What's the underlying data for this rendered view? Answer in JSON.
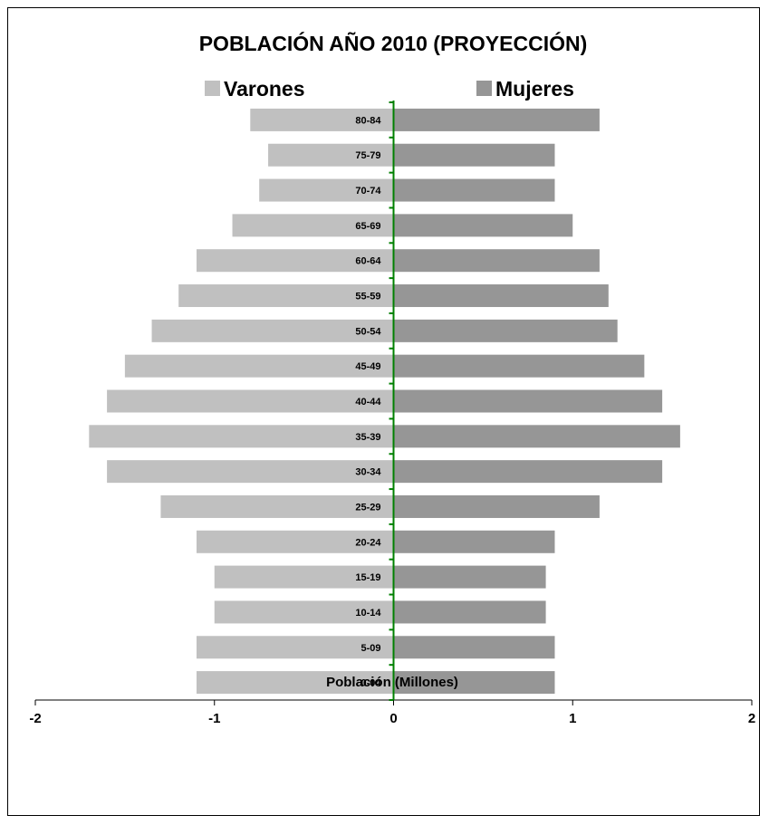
{
  "chart_data": {
    "type": "bar",
    "orientation": "horizontal",
    "layout": "population-pyramid",
    "title": "POBLACIÓN AÑO 2010 (PROYECCIÓN)",
    "xlabel": "Población (Millones)",
    "ylabel": "",
    "xlim": [
      -2,
      2
    ],
    "xticks": [
      -2,
      -1,
      0,
      1,
      2
    ],
    "xtick_labels": [
      "-2",
      "-1",
      "0",
      "1",
      "2"
    ],
    "legend_position": "top",
    "categories": [
      "0-04",
      "5-09",
      "10-14",
      "15-19",
      "20-24",
      "25-29",
      "30-34",
      "35-39",
      "40-44",
      "45-49",
      "50-54",
      "55-59",
      "60-64",
      "65-69",
      "70-74",
      "75-79",
      "80-84"
    ],
    "series": [
      {
        "name": "Varones",
        "color": "#c0c0c0",
        "values": [
          -1.1,
          -1.1,
          -1.0,
          -1.0,
          -1.1,
          -1.3,
          -1.6,
          -1.7,
          -1.6,
          -1.5,
          -1.35,
          -1.2,
          -1.1,
          -0.9,
          -0.75,
          -0.7,
          -0.8
        ]
      },
      {
        "name": "Mujeres",
        "color": "#969696",
        "values": [
          0.9,
          0.9,
          0.85,
          0.85,
          0.9,
          1.15,
          1.5,
          1.6,
          1.5,
          1.4,
          1.25,
          1.2,
          1.15,
          1.0,
          0.9,
          0.9,
          1.15
        ]
      }
    ],
    "axis_color": "#008000"
  }
}
